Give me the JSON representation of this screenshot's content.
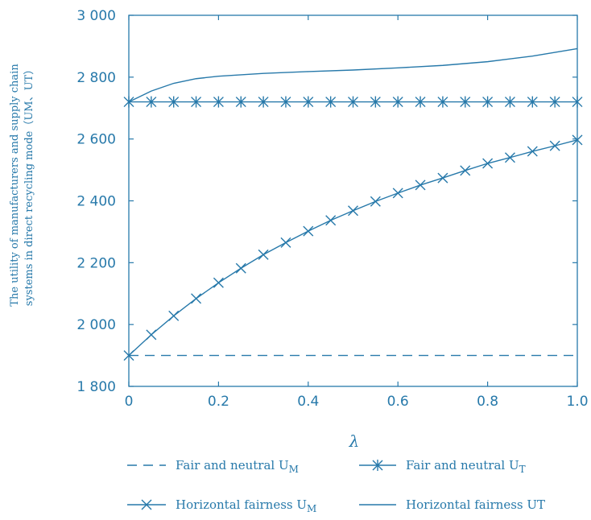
{
  "chart_data": {
    "type": "line",
    "title": "",
    "xlabel": "λ",
    "ylabel_line1": "The utility of manufacturers and supply chain",
    "ylabel_line2": "systems in direct recycling mode（UM、UT）",
    "xlim": [
      0,
      1.0
    ],
    "ylim": [
      1800,
      3000
    ],
    "x_ticks": [
      "0",
      "0.2",
      "0.4",
      "0.6",
      "0.8",
      "1.0"
    ],
    "x_tick_values": [
      0,
      0.2,
      0.4,
      0.6,
      0.8,
      1.0
    ],
    "y_ticks": [
      "1 800",
      "2 000",
      "2 200",
      "2 400",
      "2 600",
      "2 800",
      "3 000"
    ],
    "y_tick_values": [
      1800,
      2000,
      2200,
      2400,
      2600,
      2800,
      3000
    ],
    "grid": false,
    "legend_placement": "bottom",
    "series": [
      {
        "name": "Fair and neutral UM",
        "style": "dashed",
        "marker": "none",
        "x": [
          0,
          1.0
        ],
        "y": [
          1900,
          1900
        ]
      },
      {
        "name": "Fair and neutral UT",
        "style": "solid",
        "marker": "asterisk",
        "x": [
          0,
          0.05,
          0.1,
          0.15,
          0.2,
          0.25,
          0.3,
          0.35,
          0.4,
          0.45,
          0.5,
          0.55,
          0.6,
          0.65,
          0.7,
          0.75,
          0.8,
          0.85,
          0.9,
          0.95,
          1.0
        ],
        "y": [
          2720,
          2720,
          2720,
          2720,
          2720,
          2720,
          2720,
          2720,
          2720,
          2720,
          2720,
          2720,
          2720,
          2720,
          2720,
          2720,
          2720,
          2720,
          2720,
          2720,
          2720
        ]
      },
      {
        "name": "Horizontal fairness UM",
        "style": "solid",
        "marker": "x",
        "x": [
          0,
          0.05,
          0.1,
          0.15,
          0.2,
          0.25,
          0.3,
          0.35,
          0.4,
          0.45,
          0.5,
          0.55,
          0.6,
          0.65,
          0.7,
          0.75,
          0.8,
          0.85,
          0.9,
          0.95,
          1.0
        ],
        "y": [
          1900,
          1967,
          2028,
          2084,
          2135,
          2182,
          2226,
          2265,
          2302,
          2337,
          2368,
          2398,
          2425,
          2451,
          2474,
          2498,
          2521,
          2540,
          2560,
          2578,
          2597
        ]
      },
      {
        "name": "Horizontal fairness UT",
        "style": "solid",
        "marker": "none",
        "x": [
          0,
          0.05,
          0.1,
          0.15,
          0.2,
          0.3,
          0.4,
          0.5,
          0.6,
          0.7,
          0.8,
          0.9,
          1.0
        ],
        "y": [
          2720,
          2755,
          2780,
          2795,
          2803,
          2812,
          2818,
          2823,
          2830,
          2838,
          2850,
          2868,
          2892
        ]
      }
    ],
    "legend": [
      {
        "label": "Fair and neutral UM",
        "text": "Fair and neutral U",
        "sub": "M",
        "series": 0
      },
      {
        "label": "Fair and neutral UT",
        "text": "Fair and neutral  U",
        "sub": "T",
        "series": 1
      },
      {
        "label": "Horizontal fairness UM",
        "text": "Horizontal fairness U",
        "sub": "M",
        "series": 2
      },
      {
        "label": "Horizontal fairness UT",
        "text": "Horizontal fairness  UT",
        "sub": "",
        "series": 3
      }
    ],
    "colors": {
      "line": "#2779aa"
    }
  }
}
